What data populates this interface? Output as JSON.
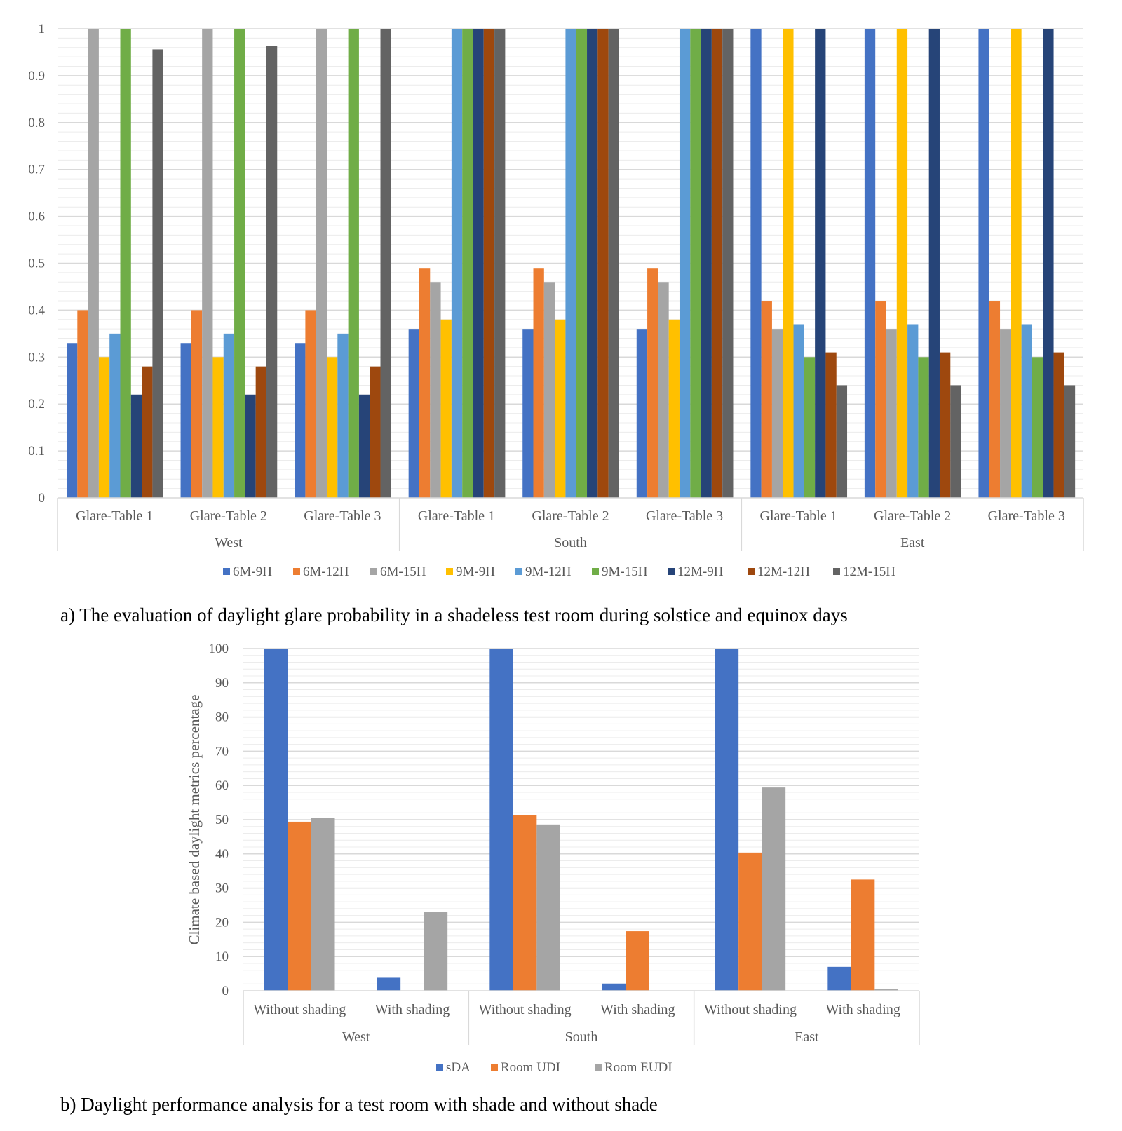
{
  "colors": {
    "blue": "#4472C4",
    "orange": "#ED7D31",
    "gray": "#A5A5A5",
    "yellow": "#FFC000",
    "lightblue": "#5B9BD5",
    "green": "#70AD47",
    "navy": "#264478",
    "brown": "#9E480E",
    "darkgray": "#636363",
    "gridline": "#D9D9D9",
    "text": "#595959"
  },
  "captions": {
    "a": "a) The evaluation of daylight glare probability in a shadeless test room during solstice and equinox days",
    "b": "b) Daylight performance analysis for a test room with shade and without shade"
  },
  "chart_data": [
    {
      "type": "bar",
      "ylim": [
        0,
        1
      ],
      "yticks": [
        "0",
        "0.1",
        "0.2",
        "0.3",
        "0.4",
        "0.5",
        "0.6",
        "0.7",
        "0.8",
        "0.9",
        "1"
      ],
      "grid": true,
      "legend": "bottom",
      "groups": [
        "West",
        "South",
        "East"
      ],
      "categories": [
        "Glare-Table 1",
        "Glare-Table 2",
        "Glare-Table 3",
        "Glare-Table 1",
        "Glare-Table 2",
        "Glare-Table 3",
        "Glare-Table 1",
        "Glare-Table 2",
        "Glare-Table 3"
      ],
      "series": [
        {
          "name": "6M-9H",
          "color": "#4472C4",
          "values": [
            0.33,
            0.33,
            0.33,
            0.36,
            0.36,
            0.36,
            1,
            1,
            1
          ]
        },
        {
          "name": "6M-12H",
          "color": "#ED7D31",
          "values": [
            0.4,
            0.4,
            0.4,
            0.49,
            0.49,
            0.49,
            0.42,
            0.42,
            0.42
          ]
        },
        {
          "name": "6M-15H",
          "color": "#A5A5A5",
          "values": [
            1,
            1,
            1,
            0.46,
            0.46,
            0.46,
            0.36,
            0.36,
            0.36
          ]
        },
        {
          "name": "9M-9H",
          "color": "#FFC000",
          "values": [
            0.3,
            0.3,
            0.3,
            0.38,
            0.38,
            0.38,
            1,
            1,
            1
          ]
        },
        {
          "name": "9M-12H",
          "color": "#5B9BD5",
          "values": [
            0.35,
            0.35,
            0.35,
            1,
            1,
            1,
            0.37,
            0.37,
            0.37
          ]
        },
        {
          "name": "9M-15H",
          "color": "#70AD47",
          "values": [
            1,
            1,
            1,
            1,
            1,
            1,
            0.3,
            0.3,
            0.3
          ]
        },
        {
          "name": "12M-9H",
          "color": "#264478",
          "values": [
            0.22,
            0.22,
            0.22,
            1,
            1,
            1,
            1,
            1,
            1
          ]
        },
        {
          "name": "12M-12H",
          "color": "#9E480E",
          "values": [
            0.28,
            0.28,
            0.28,
            1,
            1,
            1,
            0.31,
            0.31,
            0.31
          ]
        },
        {
          "name": "12M-15H",
          "color": "#636363",
          "values": [
            0.956,
            0.964,
            1,
            1,
            1,
            1,
            0.24,
            0.24,
            0.24
          ]
        }
      ]
    },
    {
      "type": "bar",
      "ylabel": "Climate based daylight metrics percentage",
      "ylim": [
        0,
        100
      ],
      "yticks": [
        "0",
        "10",
        "20",
        "30",
        "40",
        "50",
        "60",
        "70",
        "80",
        "90",
        "100"
      ],
      "grid": true,
      "legend": "bottom",
      "groups": [
        "West",
        "South",
        "East"
      ],
      "categories": [
        "Without shading",
        "With shading",
        "Without shading",
        "With shading",
        "Without shading",
        "With shading"
      ],
      "series": [
        {
          "name": "sDA",
          "color": "#4472C4",
          "values": [
            100,
            3.8,
            100,
            2.1,
            100,
            7.0
          ]
        },
        {
          "name": "Room UDI",
          "color": "#ED7D31",
          "values": [
            49.4,
            0,
            51.3,
            17.4,
            40.4,
            32.5
          ]
        },
        {
          "name": "Room EUDI",
          "color": "#A5A5A5",
          "values": [
            50.5,
            23.0,
            48.6,
            0,
            59.4,
            0.4
          ]
        }
      ]
    }
  ]
}
